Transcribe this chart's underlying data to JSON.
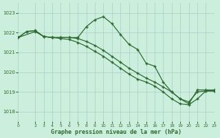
{
  "title": "Graphe pression niveau de la mer (hPa)",
  "bg_color": "#cceedd",
  "grid_color": "#aacccc",
  "line_color": "#2d6a2d",
  "xlim": [
    0,
    23
  ],
  "ylim": [
    1017.5,
    1023.5
  ],
  "yticks": [
    1018,
    1019,
    1020,
    1021,
    1022,
    1023
  ],
  "xticks": [
    0,
    2,
    3,
    4,
    5,
    6,
    7,
    8,
    9,
    10,
    11,
    12,
    13,
    14,
    15,
    16,
    17,
    18,
    19,
    20,
    21,
    22,
    23
  ],
  "line1_x": [
    0,
    1,
    2,
    3,
    4,
    5,
    6,
    7,
    8,
    9,
    10,
    11,
    12,
    13,
    14,
    15,
    16,
    17,
    18,
    19,
    20,
    21,
    22,
    23
  ],
  "line1_y": [
    1021.75,
    1022.05,
    1022.1,
    1021.8,
    1021.75,
    1021.75,
    1021.75,
    1021.75,
    1022.3,
    1022.65,
    1022.8,
    1022.45,
    1021.9,
    1021.4,
    1021.15,
    1020.45,
    1020.3,
    1019.5,
    1019.0,
    1018.65,
    1018.4,
    1019.1,
    1019.1,
    1019.1
  ],
  "line2_x": [
    0,
    1,
    2,
    3,
    4,
    5,
    6,
    7,
    8,
    9,
    10,
    11,
    12,
    13,
    14,
    15,
    16,
    17,
    18,
    19,
    20,
    21,
    22,
    23
  ],
  "line2_y": [
    1021.75,
    1022.05,
    1022.1,
    1021.8,
    1021.75,
    1021.75,
    1021.75,
    1021.7,
    1021.55,
    1021.35,
    1021.1,
    1020.8,
    1020.5,
    1020.2,
    1019.95,
    1019.7,
    1019.5,
    1019.25,
    1019.0,
    1018.65,
    1018.5,
    1019.0,
    1019.05,
    1019.05
  ],
  "line3_x": [
    0,
    2,
    3,
    4,
    5,
    6,
    7,
    8,
    9,
    10,
    11,
    12,
    13,
    14,
    15,
    16,
    17,
    18,
    19,
    20,
    21,
    22,
    23
  ],
  "line3_y": [
    1021.75,
    1022.05,
    1021.8,
    1021.75,
    1021.7,
    1021.65,
    1021.5,
    1021.3,
    1021.05,
    1020.8,
    1020.5,
    1020.2,
    1019.9,
    1019.65,
    1019.5,
    1019.3,
    1019.0,
    1018.65,
    1018.4,
    1018.35,
    1018.65,
    1019.05,
    1019.05
  ]
}
